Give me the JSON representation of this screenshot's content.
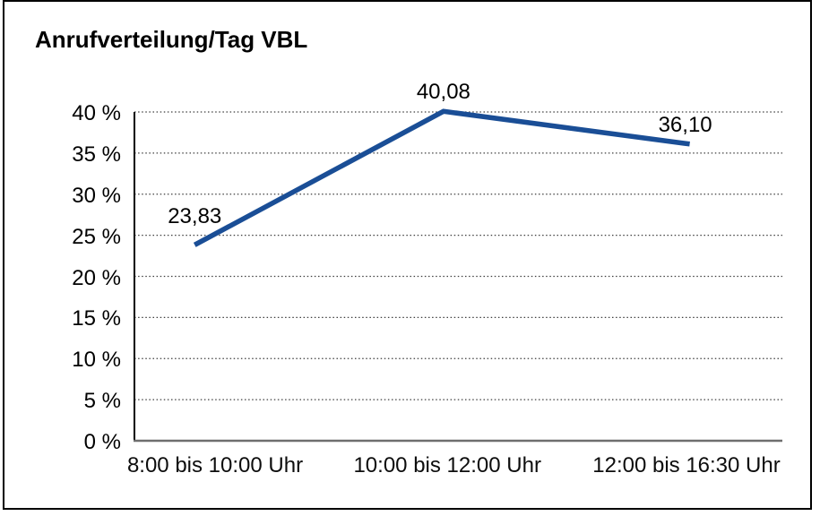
{
  "chart_data": {
    "type": "line",
    "title": "Anrufverteilung/Tag VBL",
    "categories": [
      "8:00 bis 10:00 Uhr",
      "10:00 bis 12:00 Uhr",
      "12:00 bis 16:30 Uhr"
    ],
    "series": [
      {
        "values": [
          23.83,
          40.08,
          36.1
        ],
        "point_labels": [
          "23,83",
          "40,08",
          "36,10"
        ]
      }
    ],
    "xlabel": "",
    "ylabel": "",
    "ylim": [
      0,
      40
    ],
    "ytick_step": 5,
    "ytick_labels": [
      "0 %",
      "5 %",
      "10 %",
      "15 %",
      "20 %",
      "25 %",
      "30 %",
      "35 %",
      "40 %"
    ],
    "grid": "horizontal-dotted",
    "legend": "none",
    "colors": {
      "line": "#1a4e96",
      "grid": "#3f3f3f",
      "y_axis": "#000000",
      "x_axis": "#6e6e6e",
      "frame_border": "#000000",
      "background": "#ffffff",
      "text": "#000000"
    }
  }
}
